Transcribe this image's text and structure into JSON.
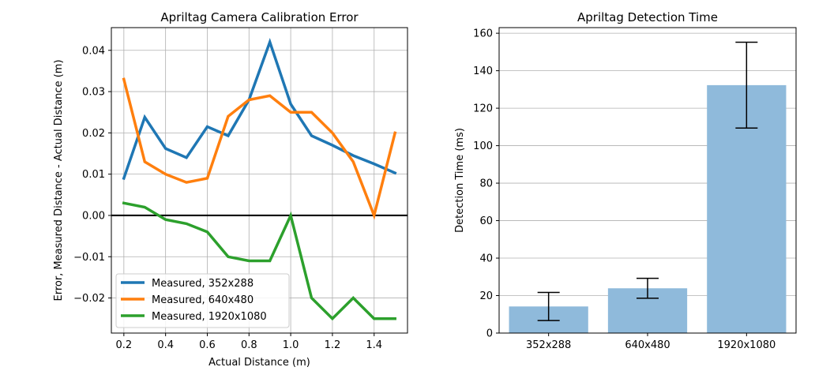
{
  "chart_data": [
    {
      "type": "line",
      "title": "Apriltag Camera Calibration Error",
      "xlabel": "Actual Distance (m)",
      "ylabel": "Error, Measured Distance - Actual Distance (m)",
      "xlim": [
        0.14,
        1.56
      ],
      "ylim": [
        -0.0285,
        0.0455
      ],
      "xticks": [
        "0.2",
        "0.4",
        "0.6",
        "0.8",
        "1.0",
        "1.2",
        "1.4"
      ],
      "yticks": [
        "−0.02",
        "−0.01",
        "0.00",
        "0.01",
        "0.02",
        "0.03",
        "0.04"
      ],
      "grid": true,
      "legend": "lower-left",
      "zero_line": true,
      "x": [
        0.2,
        0.3,
        0.4,
        0.5,
        0.6,
        0.7,
        0.8,
        0.9,
        1.0,
        1.1,
        1.2,
        1.3,
        1.4,
        1.5
      ],
      "series": [
        {
          "name": "Measured, 352x288",
          "color": "#1f77b4",
          "values": [
            0.009,
            0.0238,
            0.0162,
            0.014,
            0.0215,
            0.0193,
            0.028,
            0.042,
            0.027,
            0.0193,
            0.017,
            0.0145,
            0.0125,
            0.0103
          ]
        },
        {
          "name": "Measured, 640x480",
          "color": "#ff7f0e",
          "values": [
            0.033,
            0.013,
            0.01,
            0.008,
            0.009,
            0.024,
            0.028,
            0.029,
            0.025,
            0.025,
            0.02,
            0.013,
            0.0,
            0.02
          ]
        },
        {
          "name": "Measured, 1920x1080",
          "color": "#2ca02c",
          "values": [
            0.003,
            0.002,
            -0.001,
            -0.002,
            -0.004,
            -0.01,
            -0.011,
            -0.011,
            0.0,
            -0.02,
            -0.025,
            -0.02,
            -0.025,
            -0.025
          ]
        }
      ]
    },
    {
      "type": "bar",
      "title": "Apriltag Detection Time",
      "xlabel": "",
      "ylabel": "Detection Time (ms)",
      "ylim": [
        0,
        163
      ],
      "yticks": [
        "0",
        "20",
        "40",
        "60",
        "80",
        "100",
        "120",
        "140",
        "160"
      ],
      "grid": true,
      "bar_color": "#8fbadb",
      "categories": [
        "352x288",
        "640x480",
        "1920x1080"
      ],
      "values": [
        14.2,
        23.9,
        132.3
      ],
      "errors": [
        7.5,
        5.3,
        22.9
      ]
    }
  ]
}
